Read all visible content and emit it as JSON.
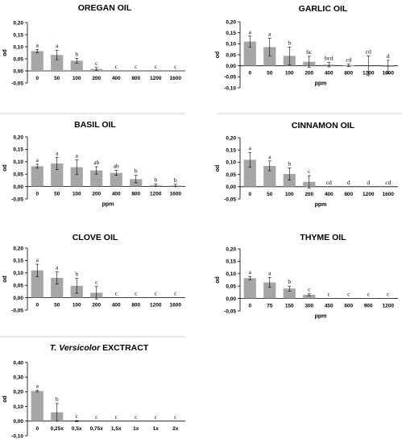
{
  "chart_data": [
    {
      "type": "bar",
      "title": "OREGAN OIL",
      "title_italic": "",
      "ylabel": "od",
      "xlabel": "",
      "ylim": [
        -0.05,
        0.2
      ],
      "yticks": [
        "-0,05",
        "0,00",
        "0,05",
        "0,10",
        "0,15",
        "0,20"
      ],
      "categories": [
        "0",
        "50",
        "100",
        "200",
        "400",
        "800",
        "1200",
        "1600"
      ],
      "values": [
        0.082,
        0.066,
        0.042,
        0.008,
        0.0,
        0.0,
        0.0,
        0.0
      ],
      "errors": [
        0.007,
        0.02,
        0.01,
        0.006,
        0.0,
        0.0,
        0.0,
        0.0
      ],
      "letters": [
        "a",
        "a",
        "b",
        "c",
        "c",
        "c",
        "c",
        "c"
      ],
      "grid": false
    },
    {
      "type": "bar",
      "title": "GARLIC OIL",
      "title_italic": "",
      "ylabel": "od",
      "xlabel": "ppm",
      "ylim": [
        -0.1,
        0.2
      ],
      "yticks": [
        "-0,10",
        "-0,05",
        "0,00",
        "0,05",
        "0,10",
        "0,15",
        "0,20"
      ],
      "categories": [
        "0",
        "50",
        "100",
        "200",
        "400",
        "800",
        "1200",
        "1600"
      ],
      "values": [
        0.11,
        0.085,
        0.045,
        0.018,
        0.005,
        0.002,
        0.0,
        -0.005
      ],
      "errors": [
        0.025,
        0.04,
        0.04,
        0.025,
        0.01,
        0.006,
        0.045,
        0.03
      ],
      "letters": [
        "a",
        "a",
        "b",
        "bc",
        "bcd",
        "cd",
        "cd",
        "d"
      ],
      "grid": false
    },
    {
      "type": "bar",
      "title": "BASIL OIL",
      "title_italic": "",
      "ylabel": "od",
      "xlabel": "ppm",
      "ylim": [
        -0.05,
        0.2
      ],
      "yticks": [
        "-0,05",
        "0,00",
        "0,05",
        "0,10",
        "0,15",
        "0,20"
      ],
      "categories": [
        "0",
        "50",
        "100",
        "200",
        "400",
        "800",
        "1200",
        "1600"
      ],
      "values": [
        0.082,
        0.093,
        0.078,
        0.065,
        0.055,
        0.03,
        0.005,
        0.004
      ],
      "errors": [
        0.008,
        0.025,
        0.03,
        0.015,
        0.01,
        0.015,
        0.005,
        0.005
      ],
      "letters": [
        "a",
        "a",
        "a",
        "ab",
        "ab",
        "b",
        "b",
        "b"
      ],
      "grid": false
    },
    {
      "type": "bar",
      "title": "CINNAMON OIL",
      "title_italic": "",
      "ylabel": "od",
      "xlabel": "ppm",
      "ylim": [
        -0.05,
        0.2
      ],
      "yticks": [
        "-0,05",
        "0,00",
        "0,05",
        "0,10",
        "0,15",
        "0,20"
      ],
      "categories": [
        "0",
        "50",
        "100",
        "200",
        "400",
        "800",
        "1200",
        "1600"
      ],
      "values": [
        0.11,
        0.085,
        0.052,
        0.02,
        0.0,
        0.0,
        0.0,
        0.0
      ],
      "errors": [
        0.03,
        0.02,
        0.025,
        0.025,
        0.0,
        0.0,
        0.0,
        0.0
      ],
      "letters": [
        "a",
        "a",
        "b",
        "c",
        "cd",
        "d",
        "d",
        "cd"
      ],
      "grid": false
    },
    {
      "type": "bar",
      "title": "CLOVE OIL",
      "title_italic": "",
      "ylabel": "od",
      "xlabel": "",
      "ylim": [
        -0.05,
        0.2
      ],
      "yticks": [
        "-0,05",
        "0,00",
        "0,05",
        "0,10",
        "0,15",
        "0,20"
      ],
      "categories": [
        "0",
        "50",
        "100",
        "200",
        "400",
        "800",
        "1200",
        "1600"
      ],
      "values": [
        0.11,
        0.08,
        0.048,
        0.02,
        0.0,
        0.0,
        0.0,
        0.0
      ],
      "errors": [
        0.025,
        0.025,
        0.03,
        0.025,
        0.0,
        0.0,
        0.0,
        0.0
      ],
      "letters": [
        "a",
        "a",
        "b",
        "c",
        "c",
        "c",
        "c",
        "c"
      ],
      "grid": false
    },
    {
      "type": "bar",
      "title": "THYME OIL",
      "title_italic": "",
      "ylabel": "od",
      "xlabel": "ppm",
      "ylim": [
        -0.05,
        0.2
      ],
      "yticks": [
        "-0,05",
        "0,00",
        "0,05",
        "0,10",
        "0,15",
        "0,20"
      ],
      "categories": [
        "0",
        "75",
        "150",
        "300",
        "450",
        "600",
        "900",
        "1200"
      ],
      "values": [
        0.082,
        0.065,
        0.04,
        0.015,
        0.0,
        0.0,
        0.0,
        0.0
      ],
      "errors": [
        0.007,
        0.02,
        0.01,
        0.004,
        0.0,
        0.0,
        0.0,
        0.0
      ],
      "letters": [
        "a",
        "a",
        "b",
        "c",
        "c",
        "c",
        "c",
        "c"
      ],
      "grid": false
    },
    {
      "type": "bar",
      "title": "EXCTRACT",
      "title_italic": "T. Versicolor",
      "ylabel": "od",
      "xlabel": "",
      "ylim": [
        -0.1,
        0.4
      ],
      "yticks": [
        "-0,10",
        "0,00",
        "0,10",
        "0,20",
        "0,30",
        "0,40"
      ],
      "categories": [
        "0",
        "0,25x",
        "0,5x",
        "0,75x",
        "1,5x",
        "1x",
        "1x",
        "2x"
      ],
      "values": [
        0.205,
        0.06,
        0.0,
        0.0,
        0.0,
        0.0,
        0.0,
        0.0
      ],
      "errors": [
        0.005,
        0.06,
        0.004,
        0.0,
        0.0,
        0.0,
        0.0,
        0.0
      ],
      "letters": [
        "a",
        "b",
        "c",
        "c",
        "c",
        "c",
        "c",
        "c"
      ],
      "grid": false
    }
  ],
  "colors": {
    "bar": "#a6a6a6",
    "axis": "#000000",
    "error": "#000000",
    "separator": "#cfcfcf"
  }
}
